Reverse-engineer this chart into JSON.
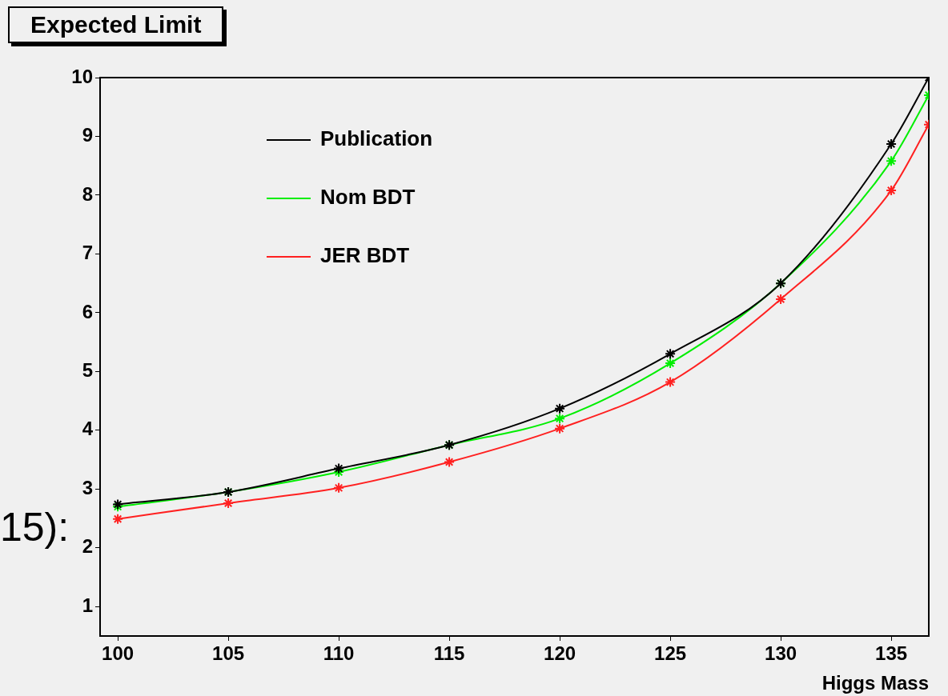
{
  "chart_data": {
    "type": "line",
    "title": "Expected Limit",
    "xlabel": "Higgs Mass",
    "x": [
      100,
      105,
      110,
      115,
      120,
      125,
      130,
      135,
      136.7
    ],
    "series": [
      {
        "name": "Publication",
        "color": "#000000",
        "values": [
          2.74,
          2.95,
          3.35,
          3.75,
          4.37,
          5.3,
          6.5,
          8.87,
          10
        ]
      },
      {
        "name": "Nom BDT",
        "color": "#00ee00",
        "values": [
          2.7,
          2.95,
          3.29,
          3.75,
          4.2,
          5.14,
          6.5,
          8.58,
          9.7
        ]
      },
      {
        "name": "JER BDT",
        "color": "#ff2020",
        "values": [
          2.49,
          2.76,
          3.02,
          3.46,
          4.03,
          4.82,
          6.23,
          8.08,
          9.2
        ]
      }
    ],
    "xlim": [
      99.2,
      136.7
    ],
    "xticks": [
      100,
      105,
      110,
      115,
      120,
      125,
      130,
      135
    ],
    "ylim": [
      0.5,
      10
    ],
    "yticks": [
      1,
      2,
      3,
      4,
      5,
      6,
      7,
      8,
      9,
      10
    ],
    "grid": false,
    "legend": "top left",
    "marker": "cross",
    "line_style": "solid",
    "annotations": [
      "15):"
    ]
  }
}
